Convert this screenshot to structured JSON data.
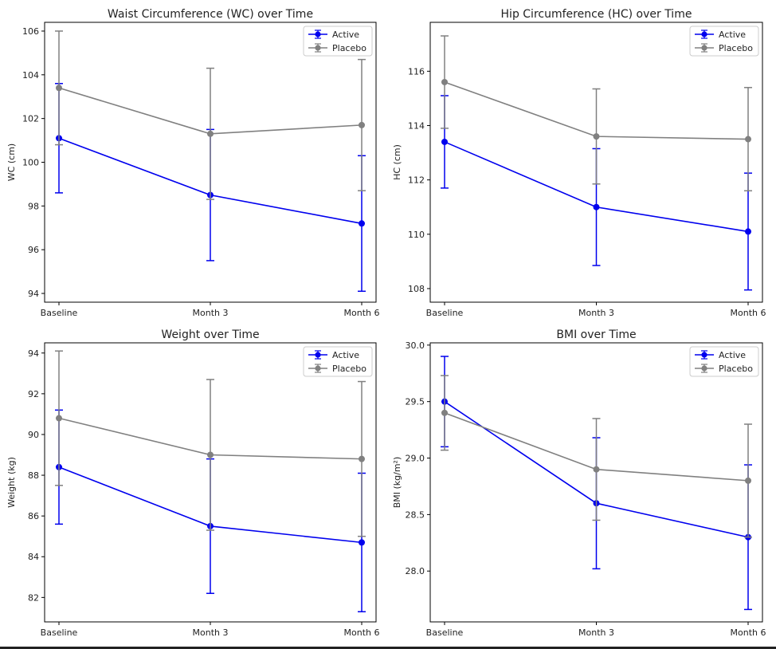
{
  "colors": {
    "active": "#0000ee",
    "placebo": "#808080",
    "axis": "#000000",
    "text": "#222222"
  },
  "chart_data": [
    {
      "type": "line",
      "title": "Waist Circumference (WC) over Time",
      "xlabel": "",
      "ylabel": "WC (cm)",
      "categories": [
        "Baseline",
        "Month 3",
        "Month 6"
      ],
      "ylim": [
        93.6,
        106.4
      ],
      "yticks": [
        94,
        96,
        98,
        100,
        102,
        104,
        106
      ],
      "grid": false,
      "legend": "top-right",
      "series": [
        {
          "name": "Active",
          "color": "#0000ee",
          "values": [
            101.1,
            98.5,
            97.2
          ],
          "err": [
            2.5,
            3.0,
            3.1
          ]
        },
        {
          "name": "Placebo",
          "color": "#808080",
          "values": [
            103.4,
            101.3,
            101.7
          ],
          "err": [
            2.6,
            3.0,
            3.0
          ]
        }
      ]
    },
    {
      "type": "line",
      "title": "Hip Circumference (HC) over Time",
      "xlabel": "",
      "ylabel": "HC (cm)",
      "categories": [
        "Baseline",
        "Month 3",
        "Month 6"
      ],
      "ylim": [
        107.5,
        117.8
      ],
      "yticks": [
        108,
        110,
        112,
        114,
        116
      ],
      "grid": false,
      "legend": "top-right",
      "series": [
        {
          "name": "Active",
          "color": "#0000ee",
          "values": [
            113.4,
            111.0,
            110.1
          ],
          "err": [
            1.7,
            2.15,
            2.15
          ]
        },
        {
          "name": "Placebo",
          "color": "#808080",
          "values": [
            115.6,
            113.6,
            113.5
          ],
          "err": [
            1.7,
            1.75,
            1.9
          ]
        }
      ]
    },
    {
      "type": "line",
      "title": "Weight over Time",
      "xlabel": "",
      "ylabel": "Weight (kg)",
      "categories": [
        "Baseline",
        "Month 3",
        "Month 6"
      ],
      "ylim": [
        80.8,
        94.5
      ],
      "yticks": [
        82,
        84,
        86,
        88,
        90,
        92,
        94
      ],
      "grid": false,
      "legend": "top-right",
      "series": [
        {
          "name": "Active",
          "color": "#0000ee",
          "values": [
            88.4,
            85.5,
            84.7
          ],
          "err": [
            2.8,
            3.3,
            3.4
          ]
        },
        {
          "name": "Placebo",
          "color": "#808080",
          "values": [
            90.8,
            89.0,
            88.8
          ],
          "err": [
            3.3,
            3.7,
            3.8
          ]
        }
      ]
    },
    {
      "type": "line",
      "title": "BMI over Time",
      "xlabel": "",
      "ylabel": "BMI (kg/m²)",
      "categories": [
        "Baseline",
        "Month 3",
        "Month 6"
      ],
      "ylim": [
        27.55,
        30.02
      ],
      "yticks": [
        28.0,
        28.5,
        29.0,
        29.5,
        30.0
      ],
      "ytick_labels": [
        "28.0",
        "28.5",
        "29.0",
        "29.5",
        "30.0"
      ],
      "grid": false,
      "legend": "top-right",
      "series": [
        {
          "name": "Active",
          "color": "#0000ee",
          "values": [
            29.5,
            28.6,
            28.3
          ],
          "err": [
            0.4,
            0.58,
            0.64
          ]
        },
        {
          "name": "Placebo",
          "color": "#808080",
          "values": [
            29.4,
            28.9,
            28.8
          ],
          "err": [
            0.33,
            0.45,
            0.5
          ]
        }
      ]
    }
  ]
}
